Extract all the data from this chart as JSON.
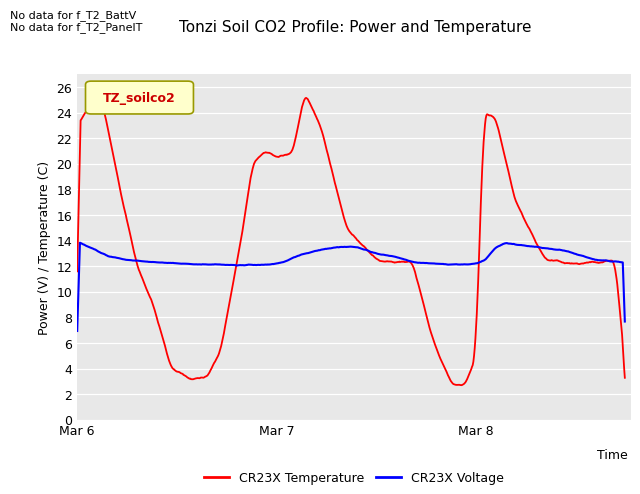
{
  "title": "Tonzi Soil CO2 Profile: Power and Temperature",
  "ylabel": "Power (V) / Temperature (C)",
  "xlabel": "Time",
  "no_data_text": [
    "No data for f_T2_BattV",
    "No data for f_T2_PanelT"
  ],
  "legend_label": "TZ_soilco2",
  "ylim": [
    0,
    27
  ],
  "yticks": [
    0,
    2,
    4,
    6,
    8,
    10,
    12,
    14,
    16,
    18,
    20,
    22,
    24,
    26
  ],
  "xtick_labels": [
    "Mar 6",
    "Mar 7",
    "Mar 8"
  ],
  "bg_color": "#e8e8e8",
  "line_red": "#ff0000",
  "line_blue": "#0000ff",
  "legend_box_facecolor": "#ffffcc",
  "legend_box_edgecolor": "#999900",
  "title_fontsize": 11,
  "label_fontsize": 9,
  "tick_fontsize": 9,
  "nodata_fontsize": 8,
  "red_label": "CR23X Temperature",
  "blue_label": "CR23X Voltage",
  "t_ctrl_r": [
    0,
    0.06,
    0.1,
    0.13,
    0.22,
    0.3,
    0.38,
    0.47,
    0.57,
    0.65,
    0.72,
    0.82,
    0.88,
    0.94,
    1.0,
    1.08,
    1.14,
    1.22,
    1.35,
    1.5,
    1.6,
    1.68,
    1.78,
    1.88,
    1.95,
    2.0,
    2.04,
    2.1,
    2.2,
    2.35,
    2.5,
    2.6,
    2.7,
    2.75
  ],
  "v_ctrl_r": [
    23,
    24.5,
    25.0,
    24.5,
    17.5,
    12,
    9.0,
    4.0,
    3.2,
    3.3,
    5.5,
    14,
    20,
    21,
    20.5,
    20.8,
    25.5,
    23,
    15,
    12.5,
    12.3,
    12.4,
    6.5,
    2.7,
    2.8,
    5,
    24.0,
    23.5,
    17,
    12.5,
    12.2,
    12.3,
    12.5,
    4.0
  ],
  "t_ctrl_b": [
    0,
    0.05,
    0.15,
    0.25,
    0.4,
    0.6,
    0.8,
    0.95,
    1.0,
    1.05,
    1.1,
    1.2,
    1.3,
    1.4,
    1.5,
    1.6,
    1.7,
    1.85,
    1.95,
    2.0,
    2.05,
    2.1,
    2.15,
    2.2,
    2.3,
    2.45,
    2.6,
    2.75
  ],
  "v_ctrl_b": [
    13.9,
    13.6,
    12.8,
    12.5,
    12.3,
    12.15,
    12.1,
    12.1,
    12.2,
    12.4,
    12.8,
    13.2,
    13.5,
    13.5,
    13.0,
    12.7,
    12.3,
    12.15,
    12.15,
    12.2,
    12.5,
    13.5,
    13.8,
    13.7,
    13.5,
    13.2,
    12.5,
    12.3
  ]
}
